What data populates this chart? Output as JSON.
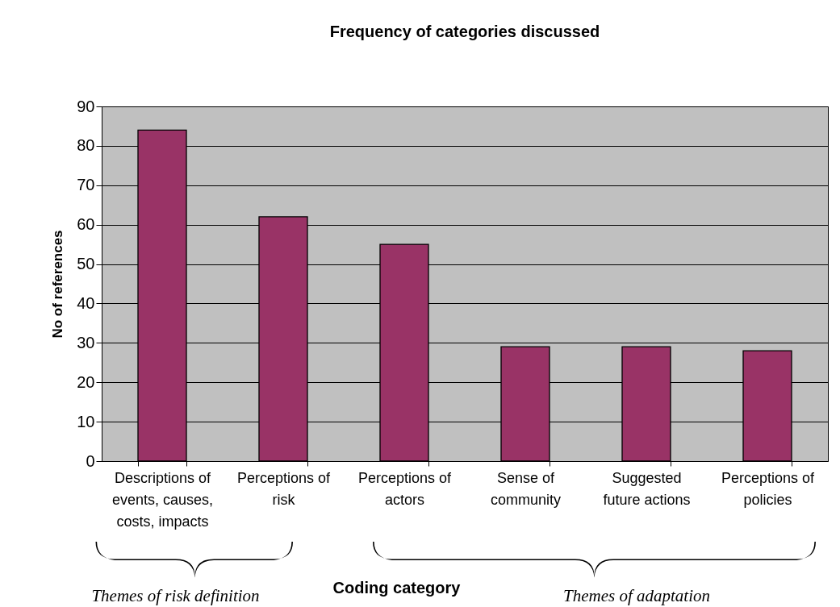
{
  "chart_data": {
    "type": "bar",
    "title": "Frequency of categories discussed",
    "categories": [
      "Descriptions of events, causes, costs, impacts",
      "Perceptions of risk",
      "Perceptions of actors",
      "Sense of community",
      "Suggested future actions",
      "Perceptions of policies"
    ],
    "values": [
      84,
      62,
      55,
      29,
      29,
      28
    ],
    "color": "#993366",
    "xlabel": "Coding category",
    "ylabel": "No of references",
    "ylim": [
      0,
      90
    ],
    "yticks": [
      0,
      10,
      20,
      30,
      40,
      50,
      60,
      70,
      80,
      90
    ],
    "grid": "y",
    "annotations": [
      "Themes of risk definition",
      "Themes of adaptation"
    ]
  }
}
